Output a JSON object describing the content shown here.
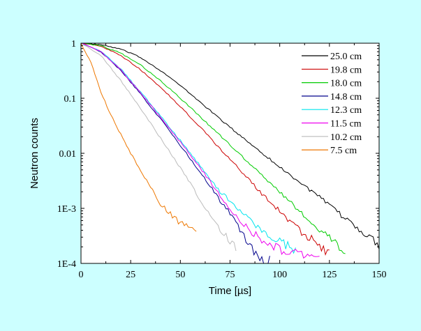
{
  "chart_data": {
    "type": "line",
    "xlabel": "Time [µs]",
    "ylabel": "Neutron counts",
    "x_scale": "linear",
    "y_scale": "log",
    "xlim": [
      0,
      150
    ],
    "ylim": [
      0.0001,
      1
    ],
    "x_ticks": [
      0,
      25,
      50,
      75,
      100,
      125,
      150
    ],
    "x_tick_labels": [
      "0",
      "25",
      "50",
      "75",
      "100",
      "125",
      "150"
    ],
    "y_ticks": [
      1,
      0.1,
      0.01,
      0.001,
      0.0001
    ],
    "y_tick_labels": [
      "1",
      "0.1",
      "0.01",
      "1E-3",
      "1E-4"
    ],
    "grid": false,
    "legend_position": "top-right",
    "background": "#ccffff",
    "plot_background": "#ffffff",
    "series": [
      {
        "name": "25.0 cm",
        "color": "#000000",
        "tau": 20.5,
        "noise_floor": 0.0002,
        "points": [
          [
            0,
            1
          ],
          [
            10,
            0.94
          ],
          [
            20,
            0.78
          ],
          [
            30,
            0.55
          ],
          [
            40,
            0.32
          ],
          [
            50,
            0.17
          ],
          [
            60,
            0.085
          ],
          [
            70,
            0.042
          ],
          [
            80,
            0.021
          ],
          [
            90,
            0.011
          ],
          [
            100,
            0.0056
          ],
          [
            110,
            0.003
          ],
          [
            120,
            0.0016
          ],
          [
            130,
            0.0008
          ],
          [
            140,
            0.00042
          ],
          [
            150,
            0.00022
          ]
        ]
      },
      {
        "name": "19.8 cm",
        "color": "#cc0000",
        "tau": 15,
        "noise_floor": 0.00022,
        "points": [
          [
            0,
            1
          ],
          [
            10,
            0.88
          ],
          [
            20,
            0.6
          ],
          [
            30,
            0.33
          ],
          [
            40,
            0.16
          ],
          [
            50,
            0.07
          ],
          [
            60,
            0.03
          ],
          [
            70,
            0.012
          ],
          [
            80,
            0.005
          ],
          [
            90,
            0.002
          ],
          [
            100,
            0.0009
          ],
          [
            110,
            0.0004
          ],
          [
            120,
            0.00022
          ],
          [
            125,
            0.00015
          ]
        ]
      },
      {
        "name": "18.0 cm",
        "color": "#00cc00",
        "tau": 16.5,
        "noise_floor": 0.0002,
        "points": [
          [
            0,
            1
          ],
          [
            10,
            0.9
          ],
          [
            20,
            0.66
          ],
          [
            30,
            0.4
          ],
          [
            40,
            0.21
          ],
          [
            50,
            0.1
          ],
          [
            60,
            0.046
          ],
          [
            70,
            0.021
          ],
          [
            80,
            0.0095
          ],
          [
            90,
            0.0043
          ],
          [
            100,
            0.002
          ],
          [
            110,
            0.0009
          ],
          [
            120,
            0.00042
          ],
          [
            130,
            0.0002
          ],
          [
            133,
            0.00015
          ]
        ]
      },
      {
        "name": "14.8 cm",
        "color": "#00008b",
        "tau": 10.5,
        "noise_floor": 0.00012,
        "points": [
          [
            0,
            1
          ],
          [
            10,
            0.7
          ],
          [
            20,
            0.32
          ],
          [
            30,
            0.12
          ],
          [
            40,
            0.042
          ],
          [
            50,
            0.014
          ],
          [
            60,
            0.0045
          ],
          [
            70,
            0.0014
          ],
          [
            75,
            0.0008
          ],
          [
            80,
            0.0004
          ],
          [
            85,
            0.00022
          ],
          [
            90,
            0.00013
          ],
          [
            95,
            0.00011
          ]
        ]
      },
      {
        "name": "12.3 cm",
        "color": "#00e5ee",
        "tau": 11,
        "noise_floor": 0.00022,
        "points": [
          [
            0,
            1
          ],
          [
            10,
            0.72
          ],
          [
            20,
            0.34
          ],
          [
            30,
            0.13
          ],
          [
            40,
            0.048
          ],
          [
            50,
            0.017
          ],
          [
            60,
            0.0058
          ],
          [
            70,
            0.002
          ],
          [
            75,
            0.0014
          ],
          [
            80,
            0.0009
          ],
          [
            90,
            0.0004
          ],
          [
            100,
            0.00025
          ],
          [
            108,
            0.00018
          ]
        ]
      },
      {
        "name": "11.5 cm",
        "color": "#ee00ee",
        "tau": 11,
        "noise_floor": 0.00018,
        "points": [
          [
            0,
            1
          ],
          [
            10,
            0.71
          ],
          [
            20,
            0.33
          ],
          [
            30,
            0.125
          ],
          [
            40,
            0.045
          ],
          [
            50,
            0.016
          ],
          [
            60,
            0.0055
          ],
          [
            70,
            0.0017
          ],
          [
            80,
            0.0006
          ],
          [
            90,
            0.00028
          ],
          [
            100,
            0.00018
          ],
          [
            110,
            0.00014
          ],
          [
            120,
            0.00012
          ]
        ]
      },
      {
        "name": "10.2 cm",
        "color": "#bbbbbb",
        "tau": 8.8,
        "noise_floor": 0.00028,
        "points": [
          [
            0,
            1
          ],
          [
            10,
            0.6
          ],
          [
            20,
            0.21
          ],
          [
            30,
            0.065
          ],
          [
            40,
            0.019
          ],
          [
            50,
            0.0055
          ],
          [
            55,
            0.0028
          ],
          [
            60,
            0.0014
          ],
          [
            65,
            0.0007
          ],
          [
            70,
            0.0004
          ],
          [
            78,
            0.0002
          ]
        ]
      },
      {
        "name": "7.5 cm",
        "color": "#ee7700",
        "tau": 5.8,
        "noise_floor": 0.0005,
        "points": [
          [
            0,
            1
          ],
          [
            5,
            0.45
          ],
          [
            10,
            0.13
          ],
          [
            15,
            0.05
          ],
          [
            20,
            0.022
          ],
          [
            25,
            0.01
          ],
          [
            30,
            0.005
          ],
          [
            35,
            0.0025
          ],
          [
            40,
            0.0012
          ],
          [
            45,
            0.0008
          ],
          [
            50,
            0.00055
          ],
          [
            55,
            0.00045
          ],
          [
            58,
            0.0004
          ]
        ]
      }
    ]
  }
}
